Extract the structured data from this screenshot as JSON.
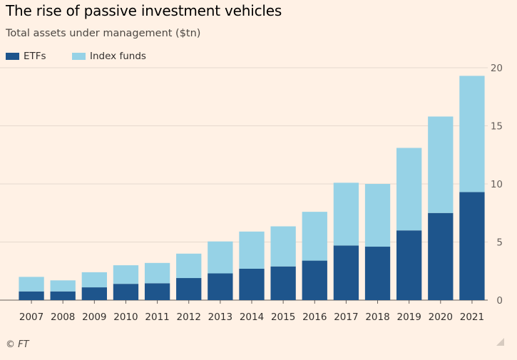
{
  "header": {
    "title": "The rise of passive investment vehicles",
    "subtitle": "Total assets under management ($tn)"
  },
  "footer": {
    "source": "© FT"
  },
  "colors": {
    "etfs": "#1e558c",
    "index_funds": "#96d2e6",
    "grid": "#e6d9ce",
    "background": "#fff1e5"
  },
  "chart_data": {
    "type": "bar",
    "stacked": true,
    "title": "The rise of passive investment vehicles",
    "subtitle": "Total assets under management ($tn)",
    "xlabel": "",
    "ylabel": "",
    "ylim": [
      0,
      20
    ],
    "yticks": [
      0,
      5,
      10,
      15,
      20
    ],
    "y_axis_side": "right",
    "grid": true,
    "legend_position": "top-left",
    "categories": [
      "2007",
      "2008",
      "2009",
      "2010",
      "2011",
      "2012",
      "2013",
      "2014",
      "2015",
      "2016",
      "2017",
      "2018",
      "2019",
      "2020",
      "2021"
    ],
    "series": [
      {
        "name": "ETFs",
        "color": "#1e558c",
        "values": [
          0.75,
          0.75,
          1.1,
          1.4,
          1.45,
          1.9,
          2.3,
          2.7,
          2.9,
          3.4,
          4.7,
          4.6,
          6.0,
          7.5,
          9.3
        ]
      },
      {
        "name": "Index funds",
        "color": "#96d2e6",
        "values": [
          1.25,
          0.95,
          1.3,
          1.6,
          1.75,
          2.1,
          2.75,
          3.2,
          3.45,
          4.2,
          5.4,
          5.4,
          7.1,
          8.3,
          10.0
        ]
      }
    ]
  }
}
